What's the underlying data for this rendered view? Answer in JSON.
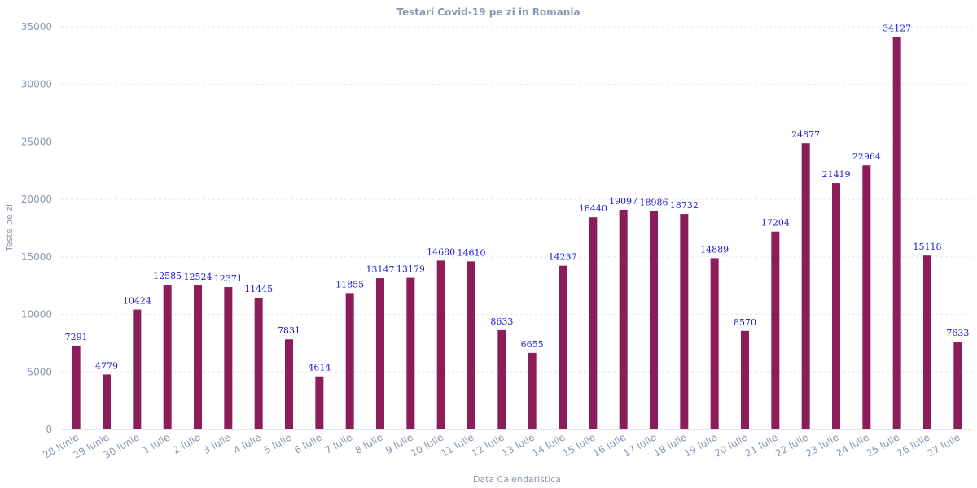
{
  "chart_data": {
    "type": "bar",
    "title": "Testari Covid-19 pe zi in Romania",
    "xlabel": "Data Calendaristica",
    "ylabel": "Teste pe zi",
    "ylim": [
      0,
      35000
    ],
    "yticks": [
      0,
      5000,
      10000,
      15000,
      20000,
      25000,
      30000,
      35000
    ],
    "grid": true,
    "categories": [
      "28 Iunie",
      "29 Iunie",
      "30 Iunie",
      "1 Iulie",
      "2 Iulie",
      "3 Iulie",
      "4 Iulie",
      "5 Iulie",
      "6 Iulie",
      "7 Iulie",
      "8 Iulie",
      "9 Iulie",
      "10 Iulie",
      "11 Iulie",
      "12 Iulie",
      "13 Iulie",
      "14 Iulie",
      "15 Iulie",
      "16 Iulie",
      "17 Iulie",
      "18 Iulie",
      "19 Iulie",
      "20 Iulie",
      "21 Iulie",
      "22 Iulie",
      "23 Iulie",
      "24 Iulie",
      "25 Iulie",
      "26 Iulie",
      "27 Iulie"
    ],
    "values": [
      7291,
      4779,
      10424,
      12585,
      12524,
      12371,
      11445,
      7831,
      4614,
      11855,
      13147,
      13179,
      14680,
      14610,
      8633,
      6655,
      14237,
      18440,
      19097,
      18986,
      18732,
      14889,
      8570,
      17204,
      24877,
      21419,
      22964,
      34127,
      15118,
      7633
    ],
    "colors": {
      "bar": "#8b1e5a",
      "data_label": "#1a1adb",
      "axis_text": "#8a98b2"
    }
  }
}
